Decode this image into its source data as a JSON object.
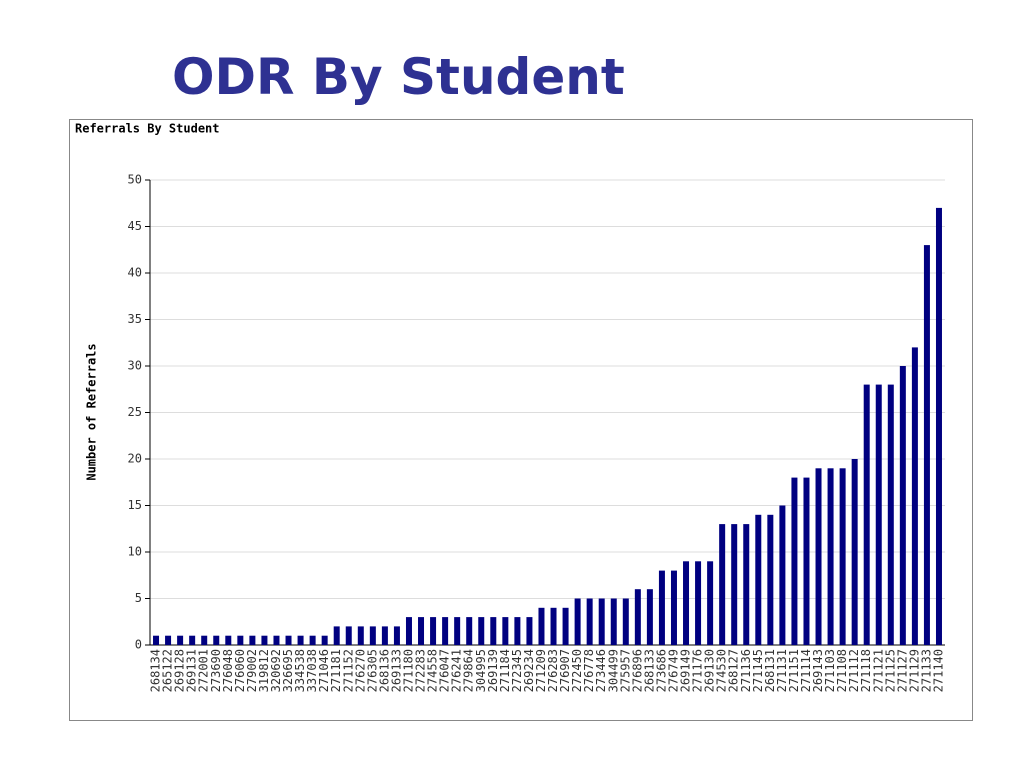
{
  "header": {
    "title": "ODR By Student"
  },
  "chart_data": {
    "type": "bar",
    "title": "Referrals By Student",
    "y_label": "Number of Referrals",
    "color": "#000080",
    "grid": true,
    "ylim": [
      0,
      50
    ],
    "yticks": [
      0,
      5,
      10,
      15,
      20,
      25,
      30,
      35,
      40,
      45,
      50
    ],
    "categories": [
      "268134",
      "265122",
      "269128",
      "269131",
      "272001",
      "273690",
      "276048",
      "276060",
      "279002",
      "319812",
      "320692",
      "326695",
      "334538",
      "337038",
      "271046",
      "271181",
      "271152",
      "276270",
      "276305",
      "268136",
      "269133",
      "271180",
      "272283",
      "274558",
      "276047",
      "276241",
      "279864",
      "304995",
      "269139",
      "271184",
      "272345",
      "269234",
      "271209",
      "276283",
      "276907",
      "272450",
      "276778",
      "273446",
      "304499",
      "275957",
      "276896",
      "268133",
      "273686",
      "276749",
      "269149",
      "271176",
      "269130",
      "274530",
      "268127",
      "271136",
      "271145",
      "268131",
      "271131",
      "271151",
      "271114",
      "269143",
      "271103",
      "271108",
      "271112",
      "271118",
      "271121",
      "271125",
      "271127",
      "271129",
      "271133",
      "271140"
    ],
    "values": [
      1,
      1,
      1,
      1,
      1,
      1,
      1,
      1,
      1,
      1,
      1,
      1,
      1,
      1,
      1,
      2,
      2,
      2,
      2,
      2,
      2,
      3,
      3,
      3,
      3,
      3,
      3,
      3,
      3,
      3,
      3,
      3,
      4,
      4,
      4,
      5,
      5,
      5,
      5,
      5,
      6,
      6,
      8,
      8,
      9,
      9,
      9,
      13,
      13,
      13,
      14,
      14,
      15,
      18,
      18,
      19,
      19,
      19,
      20,
      28,
      28,
      28,
      30,
      32,
      43,
      47
    ]
  }
}
